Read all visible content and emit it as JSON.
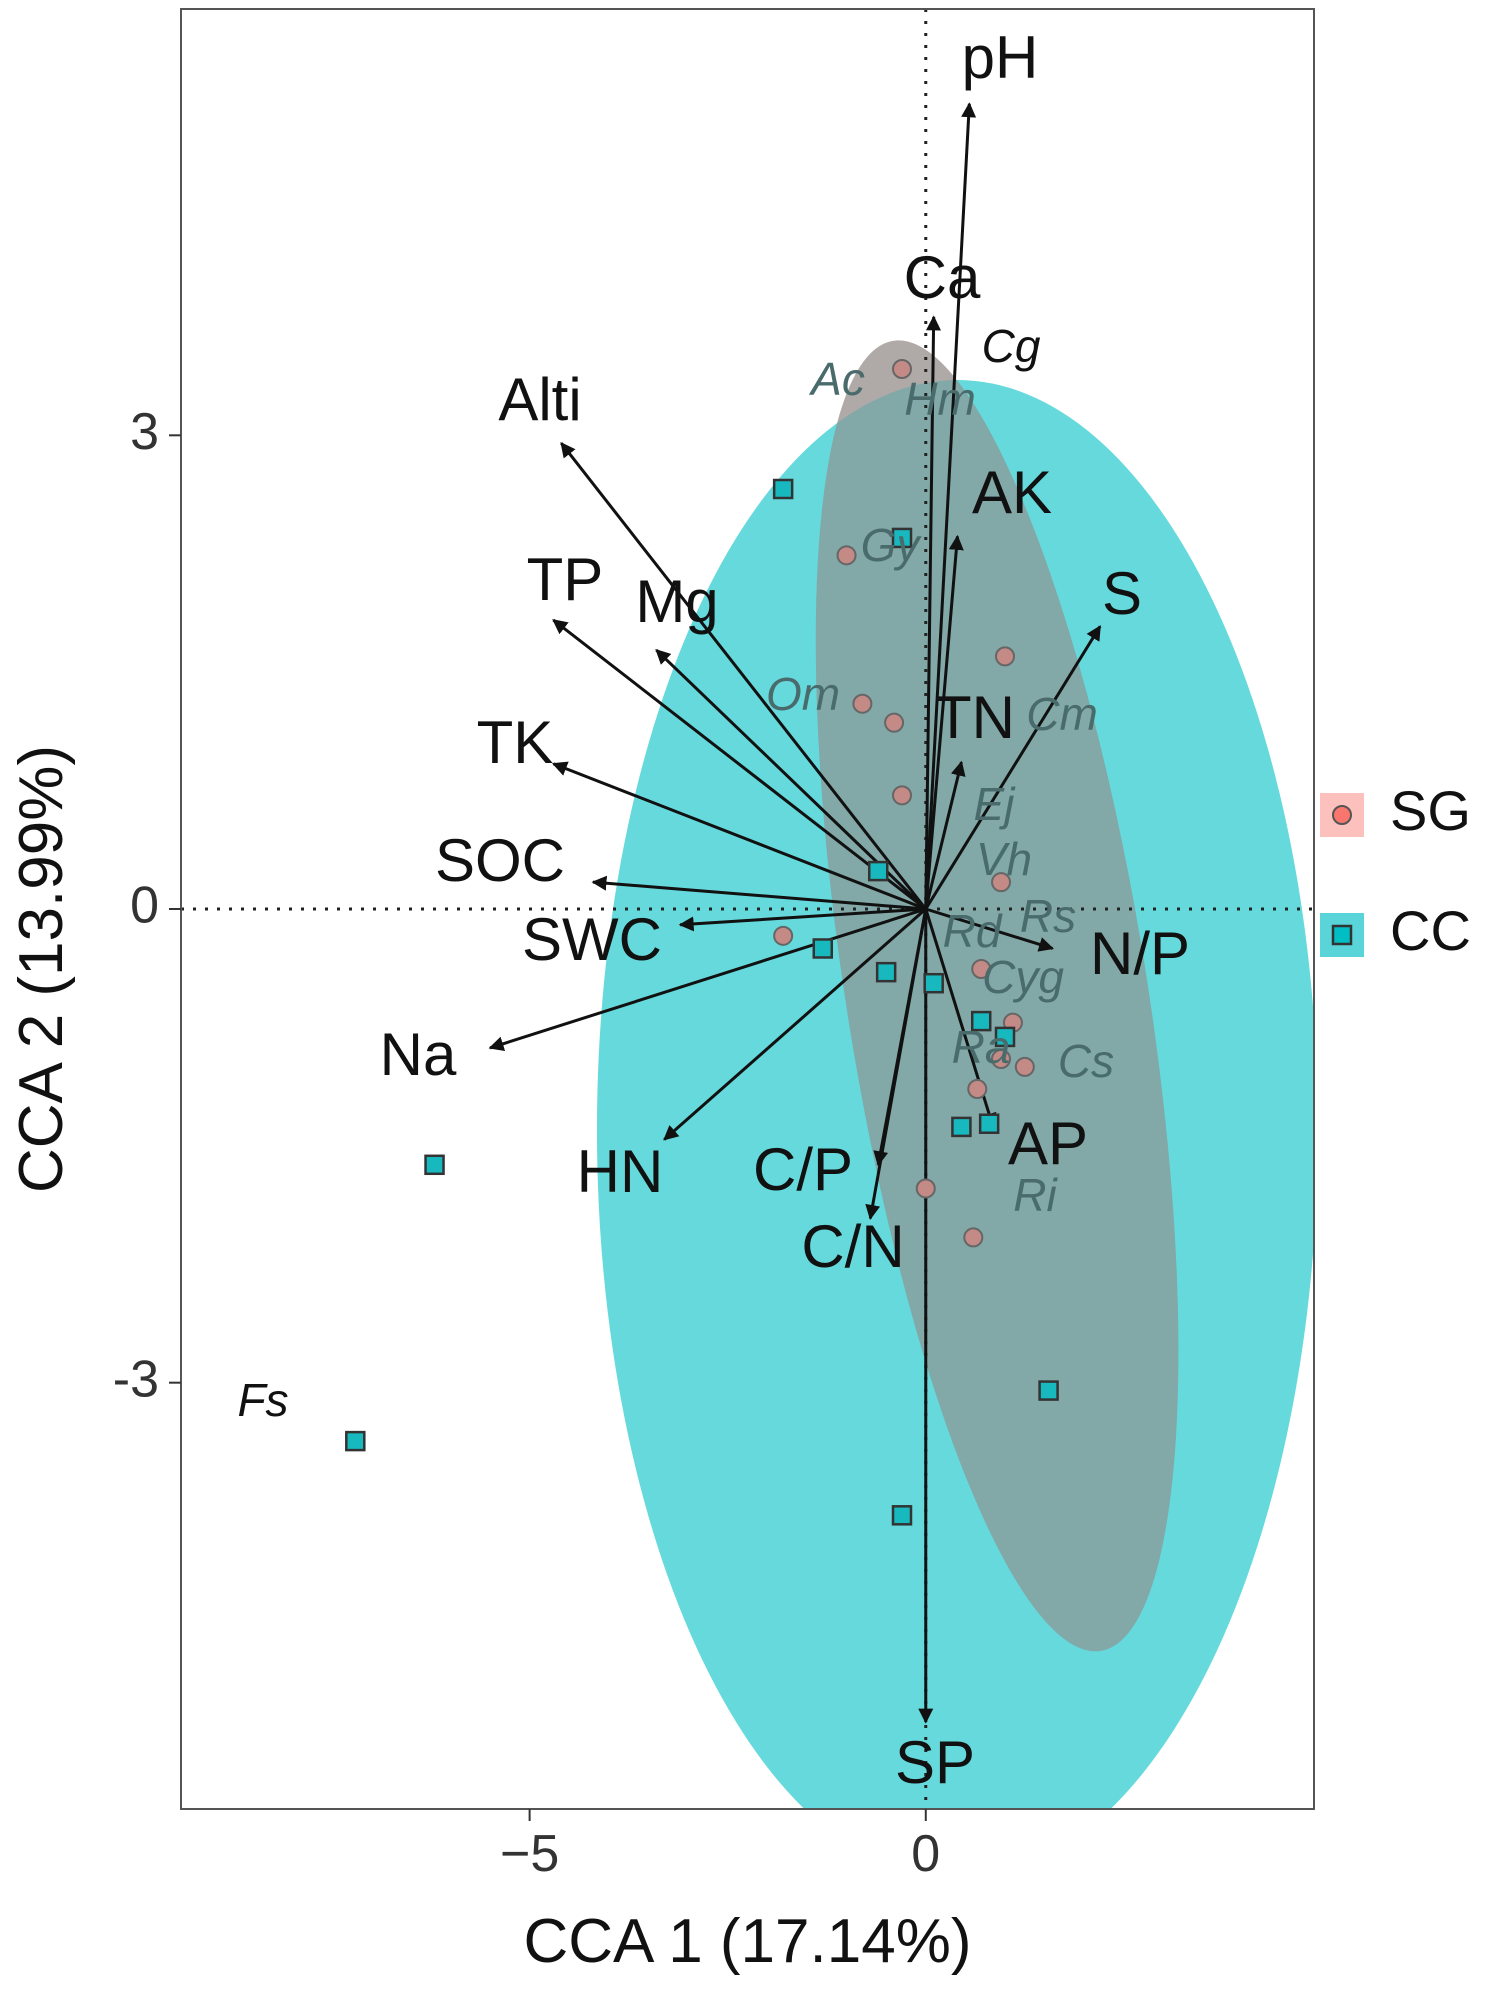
{
  "chart_data": {
    "type": "scatter",
    "xlabel": "CCA 1 (17.14%)",
    "ylabel": "CCA 2 (13.99%)",
    "xlim": [
      -9.4,
      4.9
    ],
    "ylim": [
      -5.7,
      5.7
    ],
    "x_ticks": [
      -5,
      0
    ],
    "y_ticks": [
      3,
      0,
      -3
    ],
    "tick_labels_x": [
      "−5",
      "0"
    ],
    "tick_labels_y": [
      "3",
      "0",
      "-3"
    ],
    "grid": false,
    "reference_lines": {
      "x": 0,
      "y": 0,
      "style": "dotted"
    },
    "legend": {
      "position": "right",
      "entries": [
        {
          "name": "SG",
          "color": "#f8766d",
          "marker": "circle"
        },
        {
          "name": "CC",
          "color": "#00bfc4",
          "marker": "square"
        }
      ]
    },
    "ellipses": [
      {
        "group": "SG",
        "color": "#f8766d",
        "center": [
          0.9,
          -0.55
        ],
        "radii": [
          1.9,
          4.2
        ],
        "rotation_deg": -9
      },
      {
        "group": "CC",
        "color": "#00bfc4",
        "center": [
          0.4,
          -1.4
        ],
        "radii": [
          4.55,
          4.75
        ],
        "rotation_deg": 0
      }
    ],
    "series": [
      {
        "name": "SG",
        "marker": "circle",
        "color": "#c48a86",
        "points": [
          [
            -0.3,
            3.42
          ],
          [
            -1.0,
            2.24
          ],
          [
            -0.8,
            1.3
          ],
          [
            -0.4,
            1.18
          ],
          [
            1.0,
            1.6
          ],
          [
            -0.3,
            0.72
          ],
          [
            0.95,
            0.17
          ],
          [
            0.7,
            -0.38
          ],
          [
            -1.8,
            -0.17
          ],
          [
            1.1,
            -0.72
          ],
          [
            0.95,
            -0.95
          ],
          [
            1.25,
            -1.0
          ],
          [
            0.65,
            -1.14
          ],
          [
            0.0,
            -1.77
          ],
          [
            0.6,
            -2.08
          ]
        ]
      },
      {
        "name": "CC",
        "marker": "square",
        "color": "#17b9bf",
        "points": [
          [
            -1.8,
            2.66
          ],
          [
            -0.3,
            2.35
          ],
          [
            -0.6,
            0.24
          ],
          [
            -1.3,
            -0.25
          ],
          [
            -0.5,
            -0.4
          ],
          [
            0.1,
            -0.47
          ],
          [
            0.7,
            -0.71
          ],
          [
            1.0,
            -0.81
          ],
          [
            0.45,
            -1.38
          ],
          [
            0.8,
            -1.36
          ],
          [
            -6.2,
            -1.62
          ],
          [
            1.55,
            -3.05
          ],
          [
            -7.2,
            -3.37
          ],
          [
            -0.3,
            -3.84
          ]
        ]
      }
    ],
    "biplot_arrows": [
      {
        "label": "pH",
        "x": 0.55,
        "y": 5.1
      },
      {
        "label": "Ca",
        "x": 0.1,
        "y": 3.75
      },
      {
        "label": "AK",
        "x": 0.4,
        "y": 2.36
      },
      {
        "label": "S",
        "x": 2.2,
        "y": 1.79
      },
      {
        "label": "TN",
        "x": 0.45,
        "y": 0.93
      },
      {
        "label": "Alti",
        "x": -4.6,
        "y": 2.95
      },
      {
        "label": "TP",
        "x": -4.7,
        "y": 1.83
      },
      {
        "label": "Mg",
        "x": -3.4,
        "y": 1.64
      },
      {
        "label": "TK",
        "x": -4.7,
        "y": 0.92
      },
      {
        "label": "SOC",
        "x": -4.2,
        "y": 0.17
      },
      {
        "label": "SWC",
        "x": -3.1,
        "y": -0.1
      },
      {
        "label": "Na",
        "x": -5.5,
        "y": -0.88
      },
      {
        "label": "HN",
        "x": -3.3,
        "y": -1.46
      },
      {
        "label": "N/P",
        "x": 1.6,
        "y": -0.25
      },
      {
        "label": "AP",
        "x": 0.85,
        "y": -1.38
      },
      {
        "label": "C/P",
        "x": -0.6,
        "y": -1.62
      },
      {
        "label": "C/N",
        "x": -0.7,
        "y": -1.96
      },
      {
        "label": "SP",
        "x": 0.0,
        "y": -5.15
      }
    ],
    "species_labels": [
      "Cg",
      "Ac",
      "Hm",
      "Gy",
      "Om",
      "Cm",
      "Ej",
      "Vh",
      "Rs",
      "Rd",
      "Cyg",
      "Ra",
      "Cs",
      "Ri",
      "Fs"
    ]
  }
}
